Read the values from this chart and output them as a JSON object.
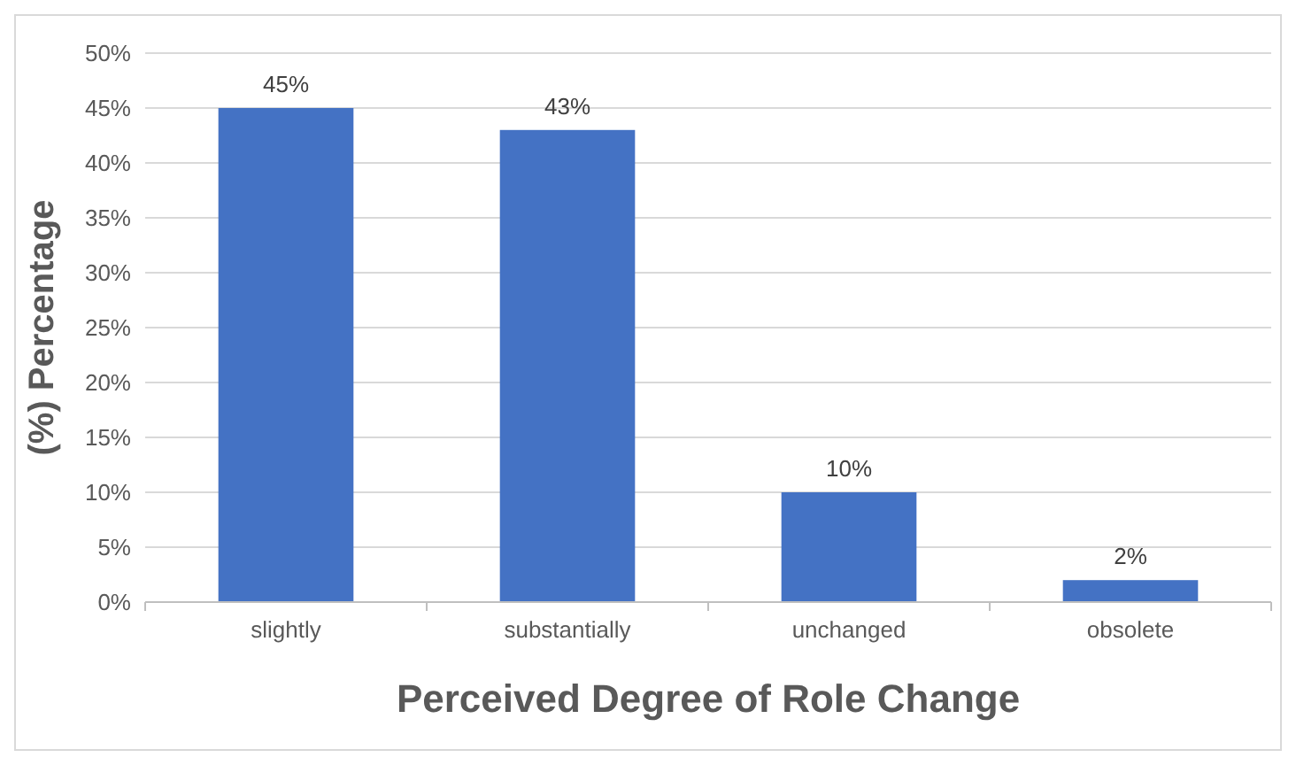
{
  "chart_data": {
    "type": "bar",
    "xlabel": "Perceived Degree of Role Change",
    "ylabel": "(%) Percentage",
    "categories": [
      "slightly",
      "substantially",
      "unchanged",
      "obsolete"
    ],
    "values": [
      45,
      43,
      10,
      2
    ],
    "value_labels": [
      "45%",
      "43%",
      "10%",
      "2%"
    ],
    "color": "#4472c4",
    "ylim": [
      0,
      50
    ],
    "yticks": [
      {
        "value": 0,
        "label": "0%"
      },
      {
        "value": 5,
        "label": "5%"
      },
      {
        "value": 10,
        "label": "10%"
      },
      {
        "value": 15,
        "label": "15%"
      },
      {
        "value": 20,
        "label": "20%"
      },
      {
        "value": 25,
        "label": "25%"
      },
      {
        "value": 30,
        "label": "30%"
      },
      {
        "value": 35,
        "label": "35%"
      },
      {
        "value": 40,
        "label": "40%"
      },
      {
        "value": 45,
        "label": "45%"
      },
      {
        "value": 50,
        "label": "50%"
      }
    ],
    "grid": "y"
  }
}
